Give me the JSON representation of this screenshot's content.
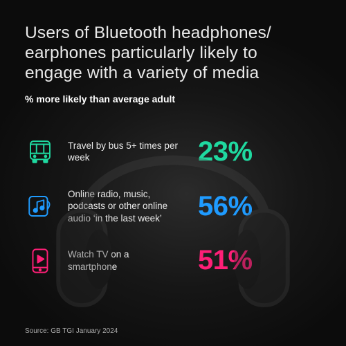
{
  "type": "infographic",
  "background": {
    "center_color": "#2b2b2b",
    "mid_color": "#161616",
    "edge_color": "#0c0c0c"
  },
  "title": {
    "text": "Users of Bluetooth headphones/\nearphones particularly likely to\nengage with a variety of media",
    "color": "#e9e9e9",
    "fontsize": 24.5,
    "fontweight": 200
  },
  "subtitle": {
    "text": "% more likely than average adult",
    "color": "#ffffff",
    "fontsize": 14,
    "fontweight": 600
  },
  "label_style": {
    "color": "#eaeaea",
    "fontsize": 13.5,
    "fontweight": 400
  },
  "value_style": {
    "fontsize": 40,
    "fontweight": 700
  },
  "stats": [
    {
      "icon": "bus-icon",
      "label": "Travel by bus 5+ times per week",
      "value": "23%",
      "color": "#1fd9a0"
    },
    {
      "icon": "music-note-icon",
      "label": "Online radio, music, podcasts or other online audio ‘in the last week’",
      "value": "56%",
      "color": "#1f9bff"
    },
    {
      "icon": "smartphone-play-icon",
      "label": "Watch TV on a smartphone",
      "value": "51%",
      "color": "#ff1f77"
    }
  ],
  "source": {
    "text": "Source: GB TGI January 2024",
    "color": "#aaaaaa",
    "fontsize": 10
  },
  "headphone_art": {
    "stroke": "#3c3c3c",
    "opacity": 0.3
  }
}
